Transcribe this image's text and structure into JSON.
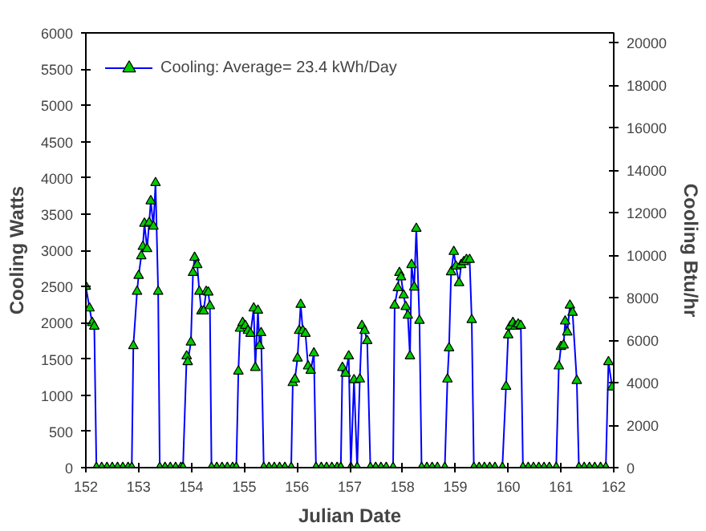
{
  "chart_data": {
    "type": "line",
    "xlabel": "Julian Date",
    "ylabel": "Cooling Watts",
    "y2label": "Cooling Btu/hr",
    "xlim": [
      152,
      162
    ],
    "xticks": [
      152,
      153,
      154,
      155,
      156,
      157,
      158,
      159,
      160,
      161,
      162
    ],
    "ylim": [
      0,
      6000
    ],
    "yticks": [
      0,
      500,
      1000,
      1500,
      2000,
      2500,
      3000,
      3500,
      4000,
      4500,
      5000,
      5500,
      6000
    ],
    "y2lim": [
      0,
      20472
    ],
    "y2ticks": [
      0,
      2000,
      4000,
      6000,
      8000,
      10000,
      12000,
      14000,
      16000,
      18000,
      20000
    ],
    "grid": false,
    "legend": "top left",
    "marker": "triangle",
    "line_style": "solid",
    "series": [
      {
        "name": "Cooling: Average= 23.4 kWh/Day",
        "color": "#0000ff",
        "x": [
          152.0,
          152.07,
          152.12,
          152.16,
          152.2,
          152.3,
          152.4,
          152.5,
          152.6,
          152.7,
          152.8,
          152.87,
          152.9,
          152.97,
          153.0,
          153.05,
          153.08,
          153.11,
          153.16,
          153.2,
          153.23,
          153.28,
          153.32,
          153.37,
          153.4,
          153.5,
          153.6,
          153.7,
          153.8,
          153.84,
          153.91,
          153.93,
          153.99,
          154.03,
          154.06,
          154.11,
          154.15,
          154.19,
          154.23,
          154.28,
          154.32,
          154.35,
          154.38,
          154.48,
          154.58,
          154.68,
          154.78,
          154.85,
          154.89,
          154.92,
          154.97,
          155.02,
          155.07,
          155.12,
          155.18,
          155.21,
          155.26,
          155.29,
          155.32,
          155.37,
          155.47,
          155.57,
          155.67,
          155.77,
          155.89,
          155.92,
          155.96,
          156.01,
          156.04,
          156.07,
          156.11,
          156.16,
          156.21,
          156.26,
          156.32,
          156.36,
          156.46,
          156.56,
          156.66,
          156.76,
          156.83,
          156.86,
          156.92,
          156.98,
          157.02,
          157.08,
          157.14,
          157.19,
          157.23,
          157.28,
          157.33,
          157.39,
          157.49,
          157.59,
          157.69,
          157.82,
          157.85,
          157.91,
          157.94,
          157.97,
          158.02,
          158.06,
          158.1,
          158.14,
          158.17,
          158.22,
          158.26,
          158.32,
          158.36,
          158.46,
          158.56,
          158.66,
          158.8,
          158.85,
          158.88,
          158.92,
          158.97,
          159.01,
          159.07,
          159.11,
          159.16,
          159.21,
          159.27,
          159.31,
          159.35,
          159.45,
          159.55,
          159.65,
          159.75,
          159.89,
          159.96,
          160.0,
          160.04,
          160.09,
          160.14,
          160.19,
          160.24,
          160.28,
          160.38,
          160.48,
          160.58,
          160.68,
          160.78,
          160.91,
          160.96,
          161.0,
          161.05,
          161.08,
          161.12,
          161.17,
          161.22,
          161.3,
          161.34,
          161.44,
          161.54,
          161.64,
          161.75,
          161.85,
          161.9,
          161.97
        ],
        "values": [
          2500,
          2200,
          2000,
          1950,
          0,
          0,
          0,
          0,
          0,
          0,
          0,
          0,
          1680,
          2430,
          2650,
          2920,
          3050,
          3370,
          3020,
          3380,
          3680,
          3330,
          3930,
          2430,
          0,
          0,
          0,
          0,
          0,
          0,
          1540,
          1460,
          1730,
          2690,
          2900,
          2800,
          2430,
          2160,
          2160,
          2430,
          2420,
          2230,
          0,
          0,
          0,
          0,
          0,
          0,
          1330,
          1920,
          2000,
          1960,
          1890,
          1850,
          2200,
          1380,
          2170,
          1680,
          1860,
          0,
          0,
          0,
          0,
          0,
          0,
          1170,
          1220,
          1510,
          1890,
          2250,
          1890,
          1850,
          1400,
          1340,
          1580,
          0,
          0,
          0,
          0,
          0,
          0,
          1380,
          1300,
          1540,
          0,
          1210,
          0,
          1220,
          1960,
          1890,
          1750,
          0,
          0,
          0,
          0,
          0,
          2240,
          2480,
          2690,
          2630,
          2380,
          2220,
          2100,
          1540,
          2800,
          2490,
          3300,
          2030,
          0,
          0,
          0,
          0,
          0,
          1220,
          1650,
          2700,
          2980,
          2780,
          2550,
          2800,
          2840,
          2870,
          2870,
          2040,
          0,
          0,
          0,
          0,
          0,
          0,
          1120,
          1830,
          1950,
          2000,
          1950,
          1980,
          1960,
          0,
          0,
          0,
          0,
          0,
          0,
          0,
          1400,
          1670,
          1690,
          2020,
          1870,
          2240,
          2140,
          1200,
          0,
          0,
          0,
          0,
          0,
          0,
          1460,
          1110
        ]
      }
    ]
  }
}
